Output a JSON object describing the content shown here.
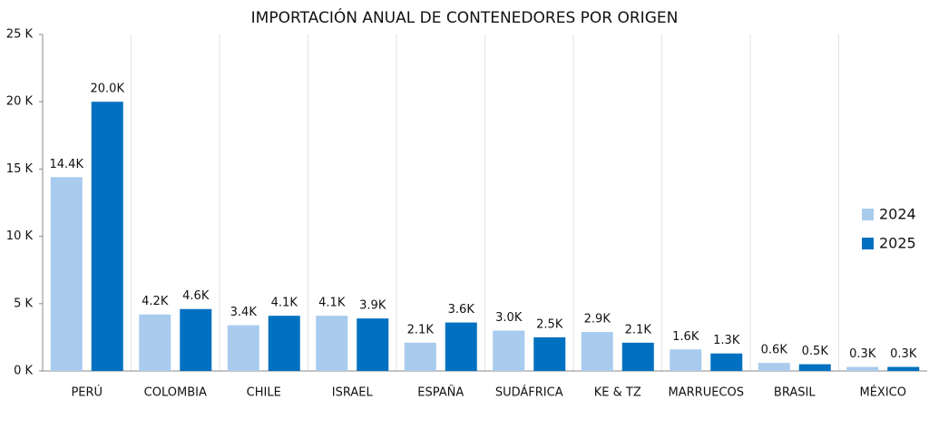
{
  "chart_data": {
    "type": "bar",
    "title": "IMPORTACIÓN ANUAL DE CONTENEDORES POR ORIGEN",
    "categories": [
      "PERÚ",
      "COLOMBIA",
      "CHILE",
      "ISRAEL",
      "ESPAÑA",
      "SUDÁFRICA",
      "KE & TZ",
      "MARRUECOS",
      "BRASIL",
      "MÉXICO"
    ],
    "series": [
      {
        "name": "2024",
        "color": "#a9cbee",
        "values": [
          14.4,
          4.2,
          3.4,
          4.1,
          2.1,
          3.0,
          2.9,
          1.6,
          0.6,
          0.3
        ],
        "value_labels": [
          "14.4K",
          "4.2K",
          "3.4K",
          "4.1K",
          "2.1K",
          "3.0K",
          "2.9K",
          "1.6K",
          "0.6K",
          "0.3K"
        ]
      },
      {
        "name": "2025",
        "color": "#0070c0",
        "values": [
          20.0,
          4.6,
          4.1,
          3.9,
          3.6,
          2.5,
          2.1,
          1.3,
          0.5,
          0.3
        ],
        "value_labels": [
          "20.0K",
          "4.6K",
          "4.1K",
          "3.9K",
          "3.6K",
          "2.5K",
          "2.1K",
          "1.3K",
          "0.5K",
          "0.3K"
        ]
      }
    ],
    "ylim": [
      0,
      25
    ],
    "yticks": [
      {
        "value": 0,
        "label": "0 K"
      },
      {
        "value": 5,
        "label": "5 K"
      },
      {
        "value": 10,
        "label": "10 K"
      },
      {
        "value": 15,
        "label": "15 K"
      },
      {
        "value": 20,
        "label": "20 K"
      },
      {
        "value": 25,
        "label": "25 K"
      }
    ],
    "grid": false,
    "legend": "right"
  }
}
